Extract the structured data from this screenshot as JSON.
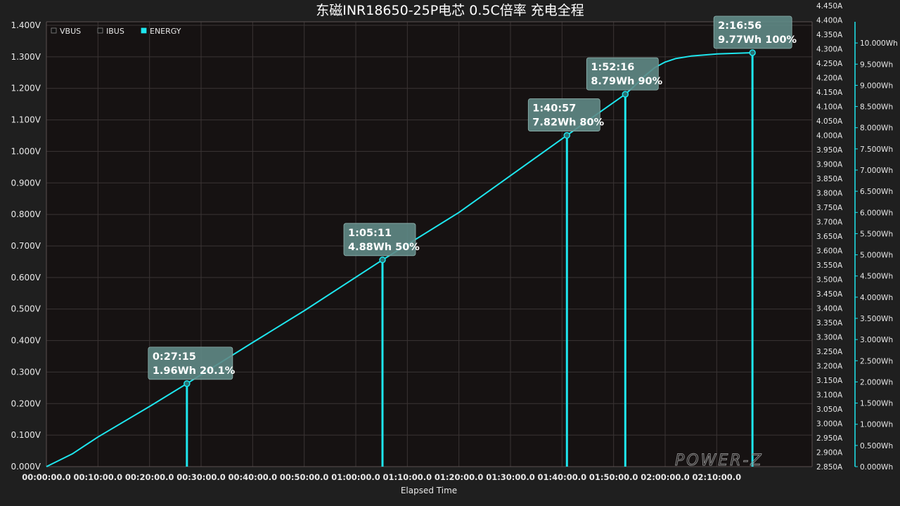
{
  "chart_data": {
    "type": "line",
    "title": "东磁INR18650-25P电芯 0.5C倍率 充电全程",
    "xlabel": "Elapsed Time",
    "x_tick_labels": [
      "00:00:00.0",
      "00:10:00.0",
      "00:20:00.0",
      "00:30:00.0",
      "00:40:00.0",
      "00:50:00.0",
      "01:00:00.0",
      "01:10:00.0",
      "01:20:00.0",
      "01:30:00.0",
      "01:40:00.0",
      "01:50:00.0",
      "02:00:00.0",
      "02:10:00.0"
    ],
    "x_tick_minutes": [
      0,
      10,
      20,
      30,
      40,
      50,
      60,
      70,
      80,
      90,
      100,
      110,
      120,
      130
    ],
    "xlim_minutes": [
      0,
      148.5
    ],
    "left_axis": {
      "unit": "V",
      "ylim": [
        0,
        1.4
      ],
      "tick_labels": [
        "1.400V",
        "1.300V",
        "1.200V",
        "1.100V",
        "1.000V",
        "0.900V",
        "0.800V",
        "0.700V",
        "0.600V",
        "0.500V",
        "0.400V",
        "0.300V",
        "0.200V",
        "0.100V",
        "0.000V"
      ]
    },
    "current_axis": {
      "unit": "A",
      "ylim": [
        2.85,
        4.45
      ],
      "tick_labels": [
        "4.450A",
        "4.400A",
        "4.350A",
        "4.300A",
        "4.250A",
        "4.200A",
        "4.150A",
        "4.100A",
        "4.050A",
        "4.000A",
        "3.950A",
        "3.900A",
        "3.850A",
        "3.800A",
        "3.750A",
        "3.700A",
        "3.650A",
        "3.600A",
        "3.550A",
        "3.500A",
        "3.450A",
        "3.400A",
        "3.350A",
        "3.300A",
        "3.250A",
        "3.200A",
        "3.150A",
        "3.100A",
        "3.050A",
        "3.000A",
        "2.950A",
        "2.900A",
        "2.850A"
      ]
    },
    "energy_axis": {
      "unit": "Wh",
      "ylim": [
        0,
        10.5
      ],
      "tick_labels": [
        "10.000Wh",
        "9.500Wh",
        "9.000Wh",
        "8.500Wh",
        "8.000Wh",
        "7.500Wh",
        "7.000Wh",
        "6.500Wh",
        "6.000Wh",
        "5.500Wh",
        "5.000Wh",
        "4.500Wh",
        "4.000Wh",
        "3.500Wh",
        "3.000Wh",
        "2.500Wh",
        "2.000Wh",
        "1.500Wh",
        "1.000Wh",
        "0.500Wh",
        "0.000Wh"
      ]
    },
    "legend": {
      "placement": "top-left",
      "entries": [
        {
          "name": "VBUS",
          "color": "#111111"
        },
        {
          "name": "IBUS",
          "color": "#111111"
        },
        {
          "name": "ENERGY",
          "color": "#1ee6ee"
        }
      ]
    },
    "series": [
      {
        "name": "ENERGY",
        "axis": "energy",
        "color": "#1ee6ee",
        "x_minutes": [
          0,
          5,
          10,
          20,
          27.25,
          40,
          50,
          65.18,
          80,
          100.95,
          112.27,
          114,
          116,
          118,
          120,
          122,
          125,
          130,
          136.93
        ],
        "y_wh": [
          0,
          0.3,
          0.7,
          1.42,
          1.96,
          2.93,
          3.68,
          4.88,
          6.0,
          7.82,
          8.79,
          8.98,
          9.22,
          9.42,
          9.55,
          9.63,
          9.69,
          9.74,
          9.77
        ]
      }
    ],
    "grid": true,
    "annotations": [
      {
        "time": "0:27:15",
        "x_minutes": 27.25,
        "energy_wh": 1.96,
        "label": "1.96Wh 20.1%"
      },
      {
        "time": "1:05:11",
        "x_minutes": 65.18,
        "energy_wh": 4.88,
        "label": "4.88Wh 50%"
      },
      {
        "time": "1:40:57",
        "x_minutes": 100.95,
        "energy_wh": 7.82,
        "label": "7.82Wh 80%"
      },
      {
        "time": "1:52:16",
        "x_minutes": 112.27,
        "energy_wh": 8.79,
        "label": "8.79Wh 90%"
      },
      {
        "time": "2:16:56",
        "x_minutes": 136.93,
        "energy_wh": 9.77,
        "label": "9.77Wh 100%"
      }
    ],
    "watermark": "POWER-Z"
  },
  "colors": {
    "background": "#1f1f1f",
    "plot_background": "#161212",
    "grid": "#3a3434",
    "energy": "#1ee6ee",
    "annotation_fill": "#5f8a86"
  }
}
